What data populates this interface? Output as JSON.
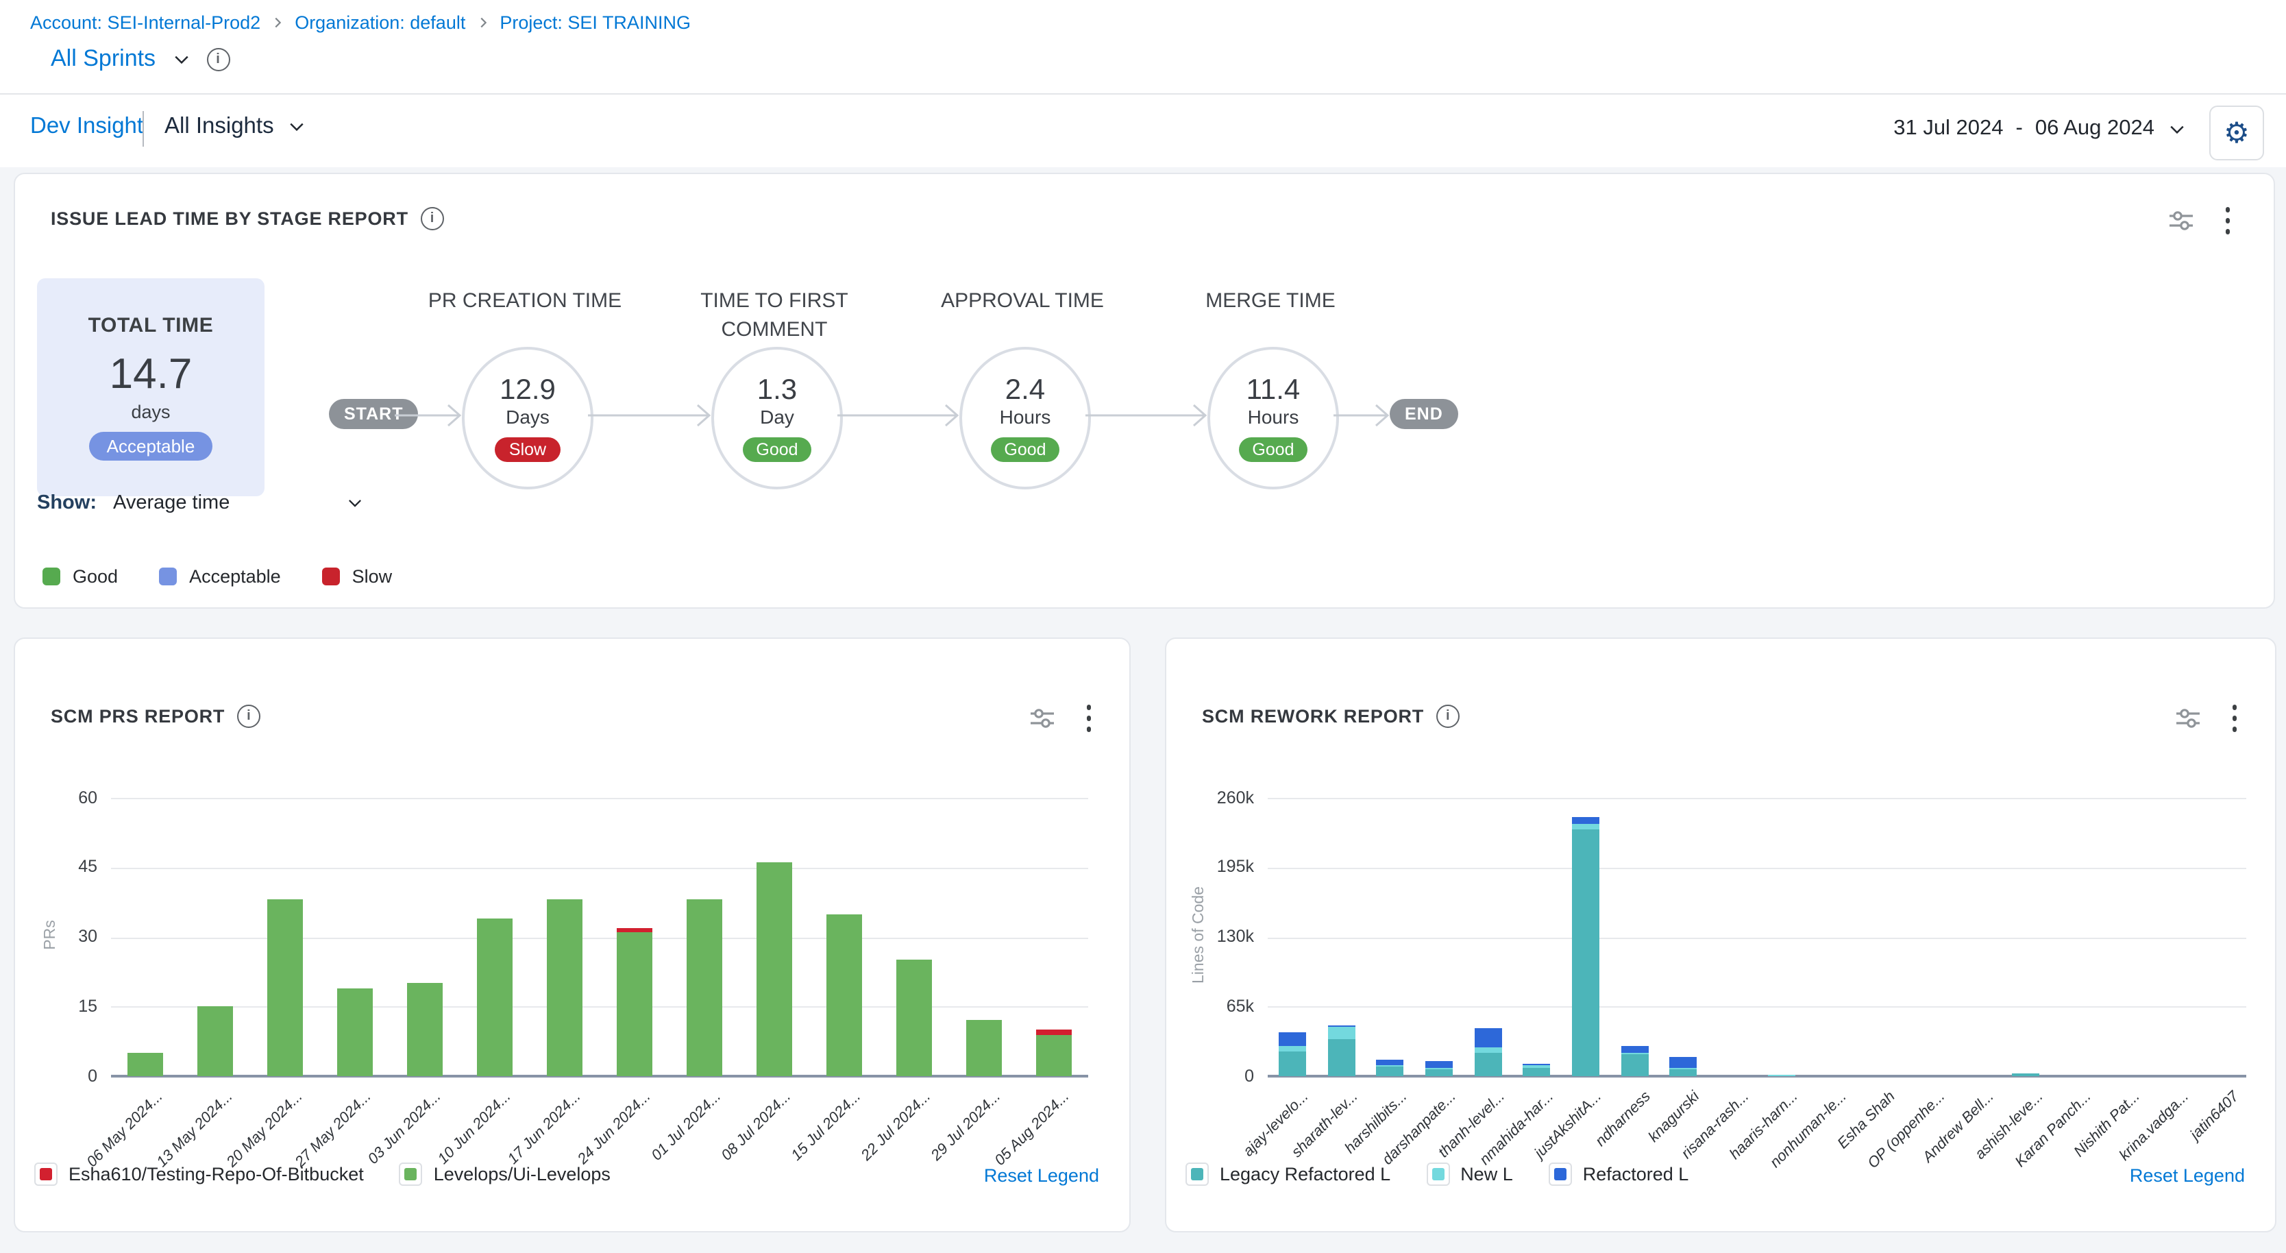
{
  "breadcrumb": {
    "items": [
      "Account: SEI-Internal-Prod2",
      "Organization: default",
      "Project: SEI TRAINING"
    ]
  },
  "sprint_selector": {
    "label": "All Sprints"
  },
  "insight_nav": {
    "title": "Dev Insight",
    "selector": "All Insights"
  },
  "date_range": {
    "start": "31 Jul 2024",
    "separator": "-",
    "end": "06 Aug 2024"
  },
  "lead_time_card": {
    "title": "ISSUE LEAD TIME BY STAGE REPORT",
    "total": {
      "label": "TOTAL TIME",
      "value": "14.7",
      "unit": "days",
      "badge": "Acceptable"
    },
    "flow_start": "START",
    "flow_end": "END",
    "stages": [
      {
        "label": "PR CREATION TIME",
        "value": "12.9",
        "unit": "Days",
        "status": "Slow"
      },
      {
        "label": "TIME TO FIRST COMMENT",
        "value": "1.3",
        "unit": "Day",
        "status": "Good"
      },
      {
        "label": "APPROVAL TIME",
        "value": "2.4",
        "unit": "Hours",
        "status": "Good"
      },
      {
        "label": "MERGE TIME",
        "value": "11.4",
        "unit": "Hours",
        "status": "Good"
      }
    ],
    "status_colors": {
      "Good": "#56aa4f",
      "Slow": "#c8232c",
      "Acceptable": "#7693e2"
    },
    "show_label": "Show:",
    "show_value": "Average time",
    "legend": [
      {
        "label": "Good",
        "color": "#56aa4f"
      },
      {
        "label": "Acceptable",
        "color": "#7693e2"
      },
      {
        "label": "Slow",
        "color": "#c8232c"
      }
    ]
  },
  "scm_prs_card": {
    "title": "SCM PRS REPORT",
    "reset_legend": "Reset Legend",
    "legend": [
      {
        "label": "Esha610/Testing-Repo-Of-Bitbucket",
        "color": "#d2202f"
      },
      {
        "label": "Levelops/Ui-Levelops",
        "color": "#6ab45e"
      }
    ],
    "chart_data": {
      "type": "bar",
      "stacked": true,
      "ylabel": "PRs",
      "ylim": [
        0,
        60
      ],
      "grid": true,
      "legend_position": "bottom",
      "yticks": [
        {
          "value": 0,
          "label": "0"
        },
        {
          "value": 15,
          "label": "15"
        },
        {
          "value": 30,
          "label": "30"
        },
        {
          "value": 45,
          "label": "45"
        },
        {
          "value": 60,
          "label": "60"
        }
      ],
      "categories": [
        "06 May 2024...",
        "13 May 2024...",
        "20 May 2024...",
        "27 May 2024...",
        "03 Jun 2024...",
        "10 Jun 2024...",
        "17 Jun 2024...",
        "24 Jun 2024...",
        "01 Jul 2024...",
        "08 Jul 2024...",
        "15 Jul 2024...",
        "22 Jul 2024...",
        "29 Jul 2024...",
        "05 Aug 2024..."
      ],
      "series": [
        {
          "name": "Levelops/Ui-Levelops",
          "color": "#6ab45e",
          "values": [
            5,
            15,
            38,
            19,
            20,
            34,
            38,
            31,
            38,
            46,
            35,
            25,
            12,
            9
          ]
        },
        {
          "name": "Esha610/Testing-Repo-Of-Bitbucket",
          "color": "#d2202f",
          "values": [
            0,
            0,
            0,
            0,
            0,
            0,
            0,
            1,
            0,
            0,
            0,
            0,
            0,
            1
          ]
        }
      ]
    }
  },
  "scm_rework_card": {
    "title": "SCM REWORK REPORT",
    "reset_legend": "Reset Legend",
    "legend": [
      {
        "label": "Legacy Refactored L",
        "color": "#4cb5b9"
      },
      {
        "label": "New L",
        "color": "#73d9de"
      },
      {
        "label": "Refactored L",
        "color": "#2d68d9"
      }
    ],
    "chart_data": {
      "type": "bar",
      "stacked": true,
      "ylabel": "Lines of Code",
      "ylim": [
        0,
        260000
      ],
      "grid": true,
      "legend_position": "bottom",
      "yticks": [
        {
          "value": 0,
          "label": "0"
        },
        {
          "value": 65000,
          "label": "65k"
        },
        {
          "value": 130000,
          "label": "130k"
        },
        {
          "value": 195000,
          "label": "195k"
        },
        {
          "value": 260000,
          "label": "260k"
        }
      ],
      "categories": [
        "ajay-levelo...",
        "sharath-lev...",
        "harshilbits...",
        "darshanpate...",
        "thanh-level...",
        "nmahida-har...",
        "justAkshitA...",
        "ndharness",
        "knagurski",
        "risana-rash...",
        "haaris-harn...",
        "nonhuman-le...",
        "Esha Shah",
        "OP (oppenhe...",
        "Andrew Bell...",
        "ashish-leve...",
        "Karan Panch...",
        "Nishith Pat...",
        "krina.vadga...",
        "jatin6407"
      ],
      "series": [
        {
          "name": "Legacy Refactored L",
          "color": "#4cb5b9",
          "values": [
            23500,
            35000,
            8500,
            6500,
            21500,
            8000,
            230000,
            20000,
            6000,
            0,
            0,
            0,
            0,
            0,
            0,
            2500,
            0,
            0,
            0,
            0
          ]
        },
        {
          "name": "New L",
          "color": "#73d9de",
          "values": [
            4500,
            11000,
            1700,
            900,
            5500,
            500,
            6000,
            1500,
            2000,
            0,
            1200,
            0,
            0,
            0,
            0,
            0,
            0,
            0,
            0,
            0
          ]
        },
        {
          "name": "Refactored L",
          "color": "#2d68d9",
          "values": [
            13500,
            1000,
            4700,
            5500,
            17500,
            1500,
            6500,
            6500,
            9500,
            0,
            0,
            0,
            0,
            0,
            0,
            0,
            0,
            0,
            0,
            0
          ]
        }
      ]
    }
  }
}
